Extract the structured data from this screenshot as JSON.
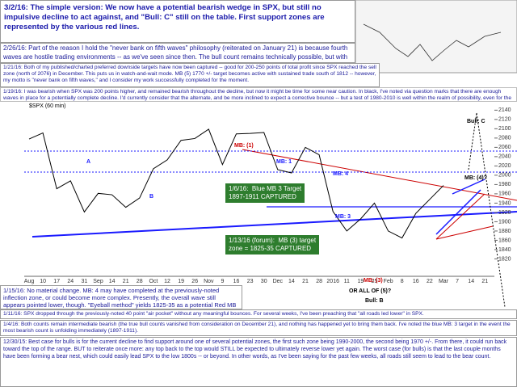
{
  "chart_data": {
    "type": "line",
    "title": "$SPX (60 min)",
    "categories": [
      "Aug",
      "10",
      "17",
      "24",
      "31",
      "Sep",
      "14",
      "21",
      "28",
      "Oct",
      "12",
      "19",
      "26",
      "Nov",
      "9",
      "16",
      "23",
      "30",
      "Dec",
      "14",
      "21",
      "28",
      "2016",
      "11",
      "19",
      "25",
      "Feb",
      "8",
      "16",
      "22",
      "Mar",
      "7",
      "14",
      "21"
    ],
    "values": [
      2078,
      2091,
      1971,
      1988,
      1921,
      1961,
      1958,
      1931,
      1951,
      2014,
      2033,
      2075,
      2079,
      2099,
      2023,
      2089,
      2090,
      2092,
      2012,
      2005,
      2060,
      2044,
      1922,
      1880,
      1906,
      1940,
      1880,
      1865,
      1918,
      1948,
      1978,
      null,
      null,
      null
    ],
    "color": "#000000",
    "ylim": [
      1786,
      2158
    ],
    "yticks": [
      1820,
      1840,
      1860,
      1880,
      1900,
      1920,
      1940,
      1960,
      1980,
      2000,
      2020,
      2040,
      2060,
      2080,
      2100,
      2120,
      2140
    ],
    "wave_labels": [
      "A",
      "B",
      "(C)",
      "MB: (1)",
      "MB: (2)",
      "MB: 1",
      "MB: 4",
      "MB: 3",
      "MB: (4)?",
      "Bull: C",
      "MB: (3)",
      "OR ALL OF (5)?",
      "Bull: B",
      "MB: (5)?"
    ],
    "boxes": [
      "1/6/16:  Blue MB 3 Target\n1897-1911 CAPTURED",
      "1/13/16 (forum):  MB (3) target\nzone = 1825-35 CAPTURED"
    ],
    "notes": [
      "3/2/16:  The simple version:  We now have a potential bearish wedge in SPX, but still no impulsive decline to act against, and \"Bull: C\" still on the table.  First support zones are represented by the various red lines.",
      "2/26/16:  Part of the reason I hold the \"never bank on fifth waves\" philosophy (reiterated on January 21) is because fourth waves are hostile trading environments -- as we've seen since then.  The bull count remains technically possible, but with no key overlaps so far, there's no reason to favor it yet.",
      "1/21/16:  Both of my published/charted preferred downside targets have now been captured -- good for 200-250 points of total profit since SPX reached the sell zone (north of 2076) in December.  This puts us in watch-and-wait mode.  MB (5) 1770 +/- target becomes active with sustained trade south of 1812 -- however, my motto is \"never bank on fifth waves,\" and I consider my work successfully completed for the moment.",
      "1/19/16:  I was bearish when SPX was 200 points higher, and remained bearish throughout the decline, but now it might be time for some near caution.  In black, I've noted via question marks that there are enough waves in place for a potentially complete decline.  I'd currently consider that the alternate, and be more inclined to expect a corrective bounce -- but a test of 1980-2010 is well within the realm of possibility, even for the bearish counts.",
      "1/15/16:  No material change.  MB: 4 may have completed at the previously-noted inflection zone, or could become more complex.  Presently, the overall wave still appears pointed lower, though.  \"Eyeball method\" yields 1825-35 as a potential Red MB (3) target.",
      "1/11/16:  SPX dropped through the previously-noted 40 point \"air pocket\" without any meaningful bounces.  For several weeks, I've been preaching that \"all roads led lower\" in SPX.",
      "1/4/16:  Both counts remain intermediate bearish (the true bull counts vanished from consideration on December 21), and nothing has happened yet to bring them back.  I've noted the blue MB: 3 target in the event the most bearish count is unfolding immediately (1897-1911).",
      "12/30/15:  Best case for bulls is for the current decline to find support around one of several potential zones, the first such zone being 1990-2000, the second being 1970 +/-.  From there, it could run back toward the top of the range.  BUT to reiterate once more: any top back to the top would STILL be expected to ultimately reverse lower yet again.  The worst case (for bulls) is that the last couple months have been forming a bear nest, which could easily lead SPX to the low 1800s -- or beyond.  In other words, as I've been saying for the past few weeks, all roads still seem to lead to the bear count."
    ]
  }
}
